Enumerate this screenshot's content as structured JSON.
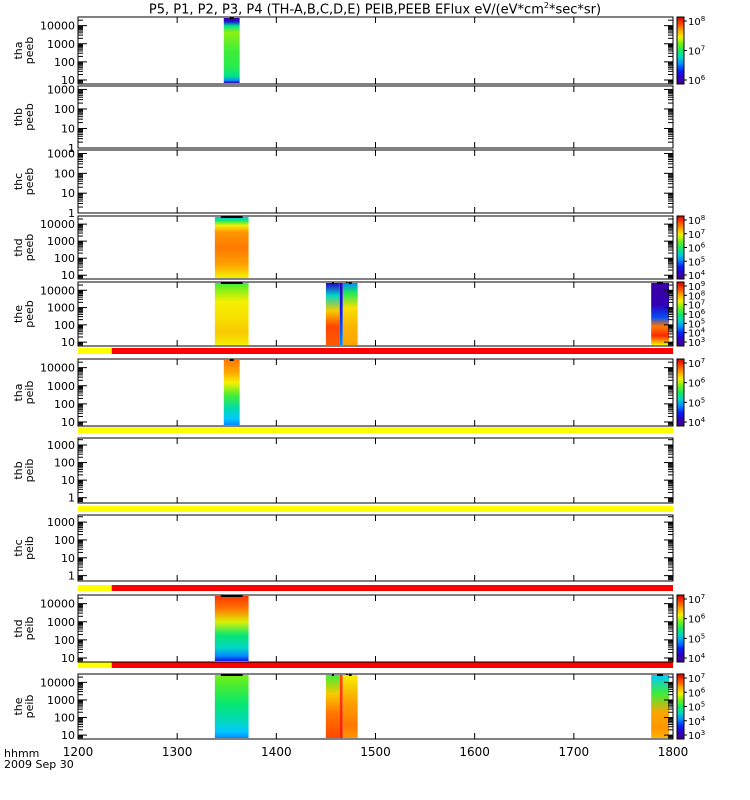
{
  "title": {
    "text_prefix": "P5, P1, P2, P3, P4 (TH-A,B,C,D,E) PEIB,PEEB EFlux eV/(eV*cm",
    "sup": "2",
    "text_suffix": "*sec*sr)"
  },
  "footer": {
    "line1": "hhmm",
    "line2": "2009 Sep 30"
  },
  "colors": {
    "flag_red": "#ff0000",
    "flag_yellow": "#ffff00",
    "axis": "#000000",
    "background": "#ffffff"
  },
  "chart_data": {
    "type": "heatmap",
    "x_unit": "hhmm",
    "x_range": [
      1200,
      1800
    ],
    "x_ticks": [
      "1200",
      "1300",
      "1400",
      "1500",
      "1600",
      "1700",
      "1800"
    ],
    "y_scale": "log",
    "panels": [
      {
        "id": "tha-peeb",
        "ylabel": [
          "tha",
          "peeb"
        ],
        "y_range": [
          6,
          30000
        ],
        "y_ticks": [
          "10",
          "100",
          "1000",
          "10000"
        ],
        "colorbar": {
          "ticks": [
            "10^8",
            "10^7",
            "10^6"
          ]
        },
        "blocks": [
          {
            "x": [
              1347,
              1363
            ],
            "kind": "tha_e"
          }
        ]
      },
      {
        "id": "thb-peeb",
        "ylabel": [
          "thb",
          "peeb"
        ],
        "y_range": [
          1,
          1500
        ],
        "y_ticks": [
          "1",
          "10",
          "100",
          "1000"
        ],
        "colorbar": null,
        "blocks": []
      },
      {
        "id": "thc-peeb",
        "ylabel": [
          "thc",
          "peeb"
        ],
        "y_range": [
          1,
          1500
        ],
        "y_ticks": [
          "1",
          "10",
          "100",
          "1000"
        ],
        "colorbar": null,
        "blocks": []
      },
      {
        "id": "thd-peeb",
        "ylabel": [
          "thd",
          "peeb"
        ],
        "y_range": [
          6,
          30000
        ],
        "y_ticks": [
          "10",
          "100",
          "1000",
          "10000"
        ],
        "colorbar": {
          "ticks": [
            "10^8",
            "10^7",
            "10^6",
            "10^5",
            "10^4"
          ]
        },
        "blocks": [
          {
            "x": [
              1338,
              1372
            ],
            "kind": "thd_e"
          }
        ]
      },
      {
        "id": "the-peeb",
        "ylabel": [
          "the",
          "peeb"
        ],
        "y_range": [
          6,
          30000
        ],
        "y_ticks": [
          "10",
          "100",
          "1000",
          "10000"
        ],
        "colorbar": {
          "ticks": [
            "10^9",
            "10^8",
            "10^7",
            "10^6",
            "10^5",
            "10^4",
            "10^3"
          ]
        },
        "blocks": [
          {
            "x": [
              1338,
              1372
            ],
            "kind": "the_e_main"
          },
          {
            "x": [
              1450,
              1464
            ],
            "kind": "the_e_mid1"
          },
          {
            "x": [
              1464,
              1467
            ],
            "kind": "the_e_gap"
          },
          {
            "x": [
              1467,
              1482
            ],
            "kind": "the_e_mid2"
          },
          {
            "x": [
              1778,
              1796
            ],
            "kind": "the_e_right"
          }
        ]
      },
      {
        "id": "tha-peib",
        "ylabel": [
          "tha",
          "peib"
        ],
        "y_range": [
          6,
          30000
        ],
        "y_ticks": [
          "10",
          "100",
          "1000",
          "10000"
        ],
        "colorbar": {
          "ticks": [
            "10^7",
            "10^6",
            "10^5",
            "10^4"
          ]
        },
        "flag_bar": [
          {
            "x": [
              1200,
              1234
            ],
            "color": "yellow"
          },
          {
            "x": [
              1234,
              1800
            ],
            "color": "red"
          }
        ],
        "blocks": [
          {
            "x": [
              1347,
              1363
            ],
            "kind": "tha_i"
          }
        ]
      },
      {
        "id": "thb-peib",
        "ylabel": [
          "thb",
          "peib"
        ],
        "y_range": [
          0.5,
          2500
        ],
        "y_ticks": [
          "1",
          "10",
          "100",
          "1000"
        ],
        "colorbar": null,
        "flag_bar": [
          {
            "x": [
              1200,
              1800
            ],
            "color": "yellow"
          }
        ],
        "blocks": []
      },
      {
        "id": "thc-peib",
        "ylabel": [
          "thc",
          "peib"
        ],
        "y_range": [
          0.5,
          2500
        ],
        "y_ticks": [
          "1",
          "10",
          "100",
          "1000"
        ],
        "colorbar": null,
        "flag_bar": [
          {
            "x": [
              1200,
              1800
            ],
            "color": "yellow"
          }
        ],
        "blocks": []
      },
      {
        "id": "thd-peib",
        "ylabel": [
          "thd",
          "peib"
        ],
        "y_range": [
          6,
          30000
        ],
        "y_ticks": [
          "10",
          "100",
          "1000",
          "10000"
        ],
        "colorbar": {
          "ticks": [
            "10^7",
            "10^6",
            "10^5",
            "10^4"
          ]
        },
        "flag_bar": [
          {
            "x": [
              1200,
              1234
            ],
            "color": "yellow"
          },
          {
            "x": [
              1234,
              1800
            ],
            "color": "red"
          }
        ],
        "blocks": [
          {
            "x": [
              1338,
              1372
            ],
            "kind": "thd_i"
          }
        ]
      },
      {
        "id": "the-peib",
        "ylabel": [
          "the",
          "peib"
        ],
        "y_range": [
          6,
          30000
        ],
        "y_ticks": [
          "10",
          "100",
          "1000",
          "10000"
        ],
        "colorbar": {
          "ticks": [
            "10^7",
            "10^6",
            "10^5",
            "10^4",
            "10^3"
          ]
        },
        "flag_bar": [
          {
            "x": [
              1200,
              1234
            ],
            "color": "yellow"
          },
          {
            "x": [
              1234,
              1800
            ],
            "color": "red"
          }
        ],
        "blocks": [
          {
            "x": [
              1338,
              1372
            ],
            "kind": "the_i_main"
          },
          {
            "x": [
              1450,
              1464
            ],
            "kind": "the_i_mid1"
          },
          {
            "x": [
              1464,
              1467
            ],
            "kind": "the_i_gap"
          },
          {
            "x": [
              1467,
              1482
            ],
            "kind": "the_i_mid2"
          },
          {
            "x": [
              1778,
              1796
            ],
            "kind": "the_i_right"
          }
        ]
      }
    ]
  }
}
